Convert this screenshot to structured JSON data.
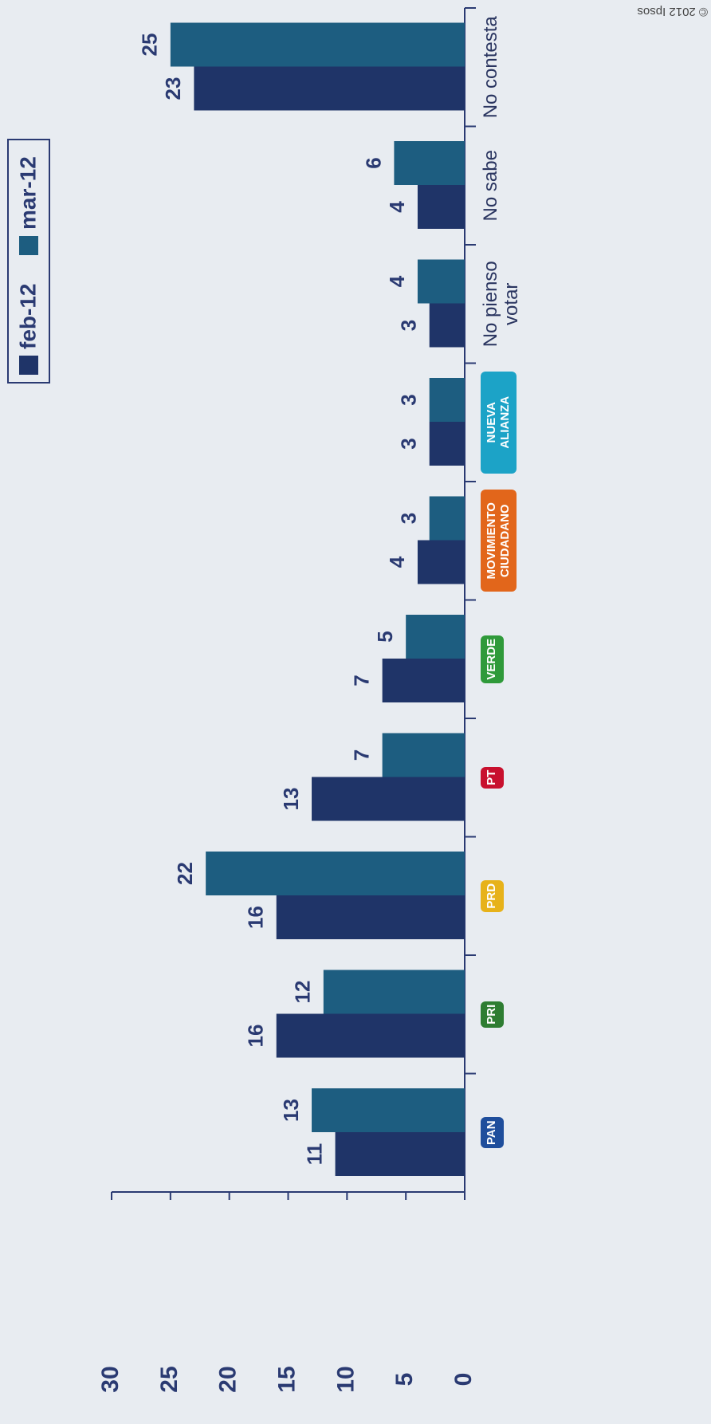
{
  "chart_data": {
    "type": "bar",
    "categories": [
      "PAN",
      "PRI",
      "PRD",
      "PT",
      "VERDE",
      "MOVIMIENTO CIUDADANO",
      "NUEVA ALIANZA",
      "No pienso votar",
      "No sabe",
      "No contesta"
    ],
    "series": [
      {
        "name": "feb-12",
        "color": "#1f3468",
        "values": [
          11,
          16,
          16,
          13,
          7,
          4,
          3,
          3,
          4,
          23
        ]
      },
      {
        "name": "mar-12",
        "color": "#1d5d80",
        "values": [
          13,
          12,
          22,
          7,
          5,
          3,
          3,
          4,
          6,
          25
        ]
      }
    ],
    "ylim": [
      0,
      30
    ],
    "yticks": [
      0,
      5,
      10,
      15,
      20,
      25,
      30
    ],
    "legend": "top-right",
    "copyright": "© 2012 Ipsos"
  }
}
